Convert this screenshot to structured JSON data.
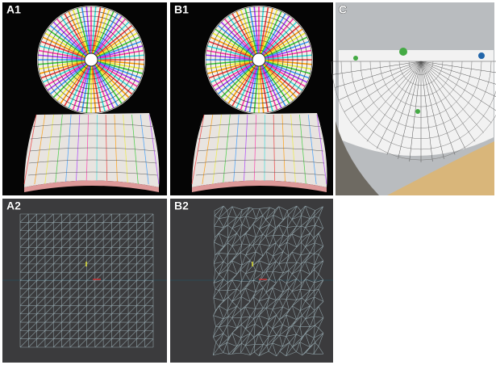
{
  "panels": [
    {
      "label": "A1"
    },
    {
      "label": "B1"
    },
    {
      "label": "C"
    },
    {
      "label": "A2"
    },
    {
      "label": "B2"
    }
  ]
}
